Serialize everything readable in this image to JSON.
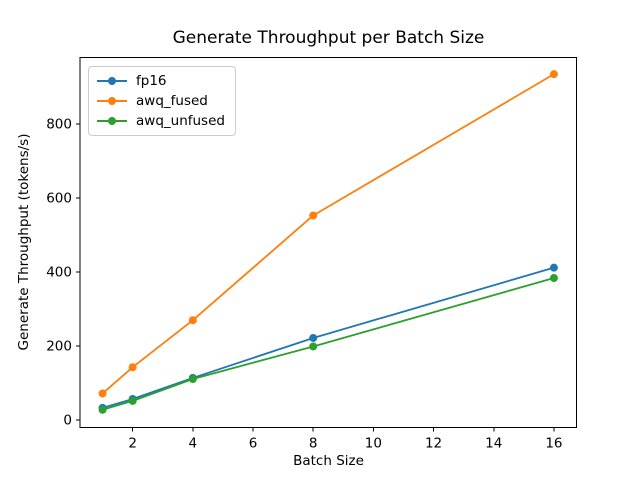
{
  "window": {
    "background": "#ffffff"
  },
  "chart_data": {
    "type": "line",
    "title": "Generate Throughput per Batch Size",
    "xlabel": "Batch Size",
    "ylabel": "Generate Throughput (tokens/s)",
    "x": [
      1,
      2,
      4,
      8,
      16
    ],
    "series": [
      {
        "name": "fp16",
        "color": "#1f77b4",
        "values": [
          33,
          57,
          114,
          222,
          412
        ]
      },
      {
        "name": "awq_fused",
        "color": "#ff7f0e",
        "values": [
          72,
          143,
          270,
          553,
          935
        ]
      },
      {
        "name": "awq_unfused",
        "color": "#2ca02c",
        "values": [
          28,
          52,
          111,
          199,
          384
        ]
      }
    ],
    "marker": "o",
    "xticks": [
      2,
      4,
      6,
      8,
      10,
      12,
      14,
      16
    ],
    "yticks": [
      0,
      200,
      400,
      600,
      800
    ],
    "xlim": [
      0.25,
      16.75
    ],
    "ylim": [
      -20,
      980
    ],
    "grid": false,
    "legend_position": "upper left"
  },
  "colors": {
    "spine": "#000000",
    "text": "#000000",
    "legend_border": "#cccccc"
  }
}
